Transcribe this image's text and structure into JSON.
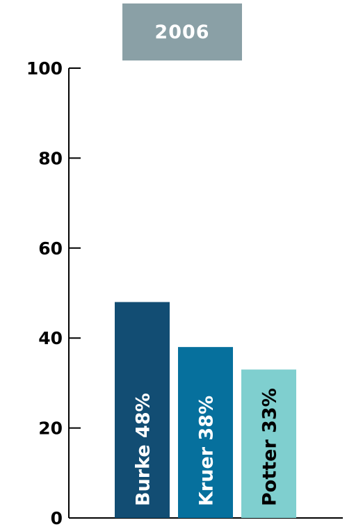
{
  "chart_data": {
    "type": "bar",
    "title": "2006",
    "categories": [
      "Burke",
      "Kruer",
      "Potter"
    ],
    "values": [
      48,
      38,
      33
    ],
    "bar_labels": [
      "Burke 48%",
      "Kruer 38%",
      "Potter 33%"
    ],
    "ylim": [
      0,
      100
    ],
    "yticks": [
      "0",
      "20",
      "40",
      "60",
      "80",
      "100"
    ],
    "colors": [
      "#124d73",
      "#06709d",
      "#7fcfcf"
    ],
    "label_colors": [
      "#ffffff",
      "#ffffff",
      "#000000"
    ],
    "title_bg": "#8aa0a6",
    "grid": false,
    "legend": "none"
  }
}
